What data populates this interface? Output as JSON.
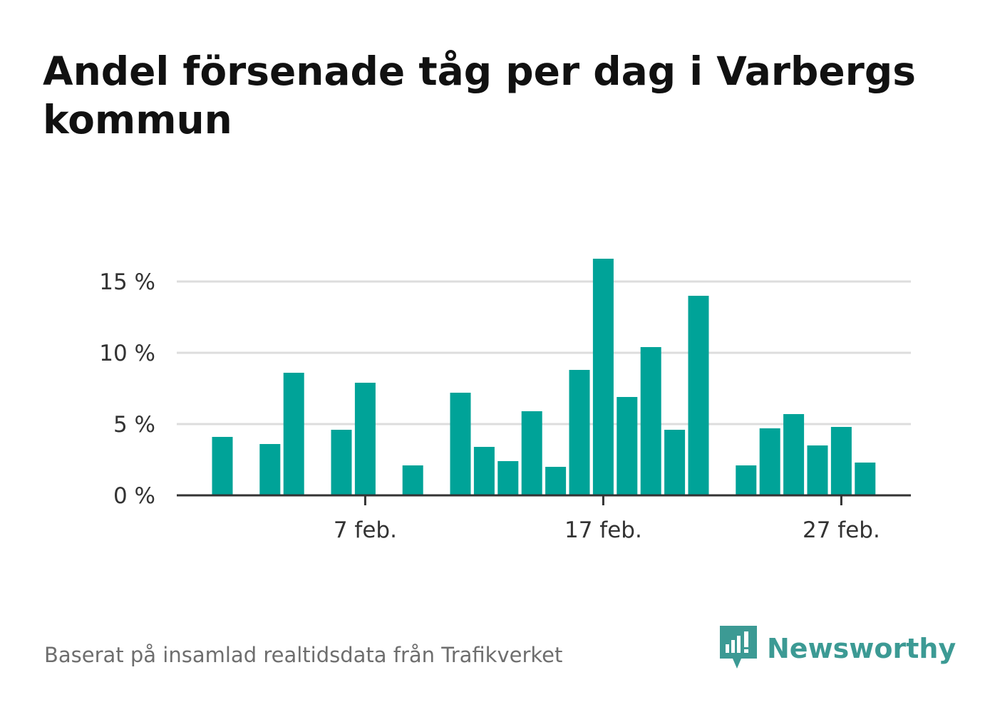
{
  "title": "Andel försenade tåg per dag i Varbergs kommun",
  "footer": {
    "source": "Baserat på insamlad realtidsdata från Trafikverket",
    "brand": "Newsworthy"
  },
  "colors": {
    "bar": "#00a398",
    "grid": "#dddddd",
    "axis": "#333333",
    "brand": "#3c9a94"
  },
  "chart_data": {
    "type": "bar",
    "x": [
      1,
      2,
      3,
      4,
      5,
      6,
      7,
      8,
      9,
      10,
      11,
      12,
      13,
      14,
      15,
      16,
      17,
      18,
      19,
      20,
      21,
      22,
      23,
      24,
      25,
      26,
      27,
      28
    ],
    "values": [
      4.1,
      null,
      3.6,
      8.6,
      null,
      4.6,
      7.9,
      null,
      2.1,
      null,
      7.2,
      3.4,
      2.4,
      5.9,
      2.0,
      8.8,
      16.6,
      6.9,
      10.4,
      4.6,
      14.0,
      null,
      2.1,
      4.7,
      5.7,
      3.5,
      4.8,
      2.3
    ],
    "ylim": [
      0,
      17
    ],
    "yticks": [
      0,
      5,
      10,
      15
    ],
    "ytick_labels": [
      "0 %",
      "5 %",
      "10 %",
      "15 %"
    ],
    "xticks": [
      7,
      17,
      27
    ],
    "xtick_labels": [
      "7 feb.",
      "17 feb.",
      "27 feb."
    ],
    "xlabel": "",
    "ylabel": "",
    "grid": true
  }
}
